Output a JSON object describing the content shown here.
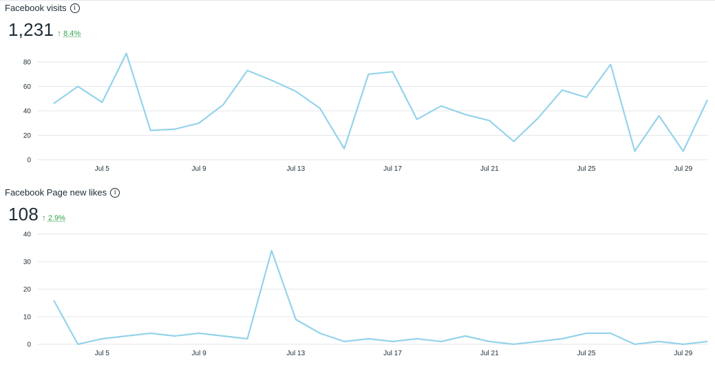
{
  "charts": [
    {
      "title": "Facebook visits",
      "metric": "1,231",
      "delta": "8.4%",
      "delta_color": "#31a24c",
      "line_color": "#94d3ea"
    },
    {
      "title": "Facebook Page new likes",
      "metric": "108",
      "delta": "2.9%",
      "delta_color": "#31a24c",
      "line_color": "#94d3ea"
    }
  ],
  "chart_data": [
    {
      "type": "line",
      "title": "Facebook visits",
      "xlabel": "",
      "ylabel": "",
      "x": [
        "Jul 3",
        "Jul 4",
        "Jul 5",
        "Jul 6",
        "Jul 7",
        "Jul 8",
        "Jul 9",
        "Jul 10",
        "Jul 11",
        "Jul 12",
        "Jul 13",
        "Jul 14",
        "Jul 15",
        "Jul 16",
        "Jul 17",
        "Jul 18",
        "Jul 19",
        "Jul 20",
        "Jul 21",
        "Jul 22",
        "Jul 23",
        "Jul 24",
        "Jul 25",
        "Jul 26",
        "Jul 27",
        "Jul 28",
        "Jul 29",
        "Jul 30"
      ],
      "x_ticks": [
        "Jul 5",
        "Jul 9",
        "Jul 13",
        "Jul 17",
        "Jul 21",
        "Jul 25",
        "Jul 29"
      ],
      "y_ticks": [
        0,
        20,
        40,
        60,
        80
      ],
      "ylim": [
        0,
        88
      ],
      "grid": true,
      "values": [
        46,
        60,
        47,
        87,
        24,
        25,
        30,
        45,
        73,
        65,
        56,
        42,
        9,
        70,
        72,
        33,
        44,
        37,
        32,
        15,
        34,
        57,
        51,
        78,
        7,
        36,
        7,
        49
      ]
    },
    {
      "type": "line",
      "title": "Facebook Page new likes",
      "xlabel": "",
      "ylabel": "",
      "x": [
        "Jul 3",
        "Jul 4",
        "Jul 5",
        "Jul 6",
        "Jul 7",
        "Jul 8",
        "Jul 9",
        "Jul 10",
        "Jul 11",
        "Jul 12",
        "Jul 13",
        "Jul 14",
        "Jul 15",
        "Jul 16",
        "Jul 17",
        "Jul 18",
        "Jul 19",
        "Jul 20",
        "Jul 21",
        "Jul 22",
        "Jul 23",
        "Jul 24",
        "Jul 25",
        "Jul 26",
        "Jul 27",
        "Jul 28",
        "Jul 29",
        "Jul 30"
      ],
      "x_ticks": [
        "Jul 5",
        "Jul 9",
        "Jul 13",
        "Jul 17",
        "Jul 21",
        "Jul 25",
        "Jul 29"
      ],
      "y_ticks": [
        0,
        10,
        20,
        30,
        40
      ],
      "ylim": [
        0,
        40
      ],
      "grid": true,
      "values": [
        16,
        0,
        2,
        3,
        4,
        3,
        4,
        3,
        2,
        34,
        9,
        4,
        1,
        2,
        1,
        2,
        1,
        3,
        1,
        0,
        1,
        2,
        4,
        4,
        0,
        1,
        0,
        1
      ]
    }
  ]
}
